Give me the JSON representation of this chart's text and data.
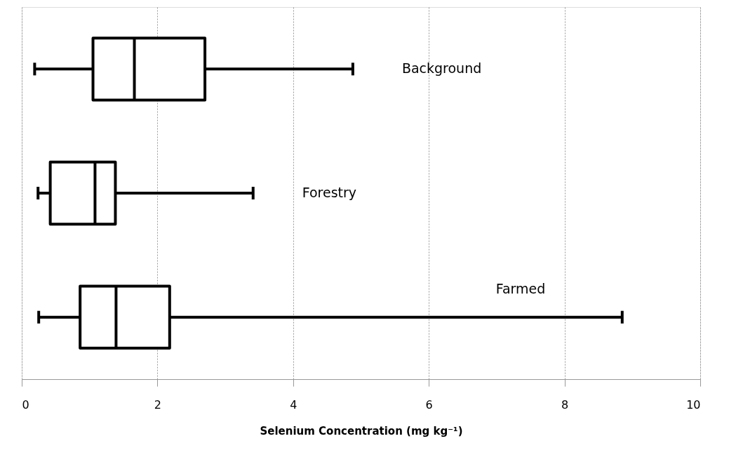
{
  "chart_data": {
    "type": "box",
    "orientation": "horizontal",
    "xlabel": "Selenium Concentration (mg kg⁻¹)",
    "categories": [
      "Background",
      "Forestry",
      "Farmed"
    ],
    "boxes": [
      {
        "low": 0.19,
        "q1": 1.05,
        "median": 1.66,
        "q3": 2.7,
        "high": 4.88
      },
      {
        "low": 0.24,
        "q1": 0.42,
        "median": 1.08,
        "q3": 1.38,
        "high": 3.41
      },
      {
        "low": 0.25,
        "q1": 0.86,
        "median": 1.39,
        "q3": 2.18,
        "high": 8.85
      }
    ],
    "xlim": [
      0,
      10
    ],
    "xticks": [
      0,
      2,
      4,
      6,
      8,
      10
    ],
    "grid": "x",
    "tick_labels": "x"
  }
}
